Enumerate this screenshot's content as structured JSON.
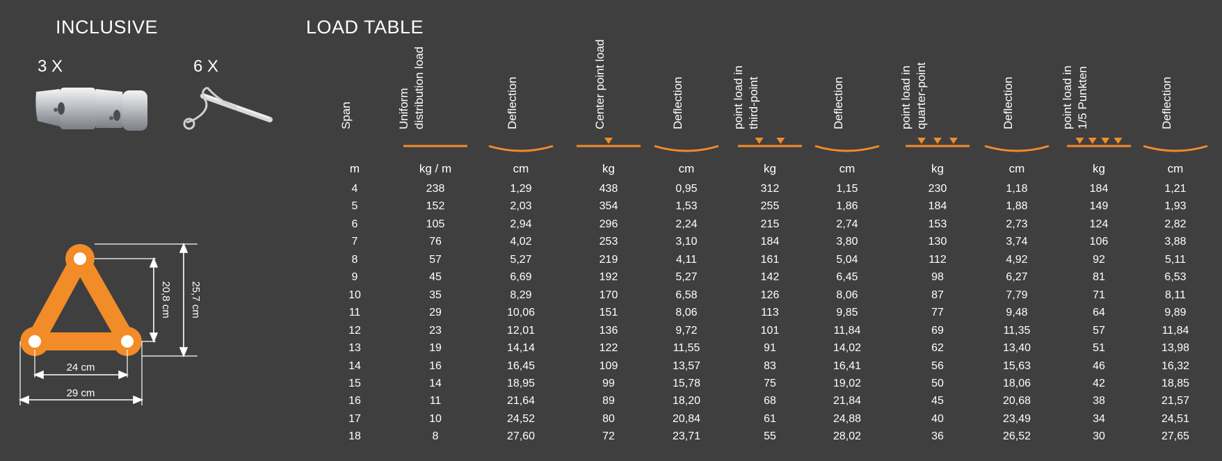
{
  "inclusive": {
    "heading": "INCLUSIVE",
    "item1_qty": "3 X",
    "item2_qty": "6 X"
  },
  "dimensions": {
    "inner_width": "24 cm",
    "outer_width": "29 cm",
    "inner_height": "20,8 cm",
    "outer_height": "25,7 cm"
  },
  "load_table": {
    "heading": "LOAD TABLE",
    "accent_color": "#f28c28",
    "columns": [
      {
        "label": "Span",
        "unit": "m",
        "symbol": "none"
      },
      {
        "label": "Uniform\ndistribution load",
        "unit": "kg / m",
        "symbol": "flat"
      },
      {
        "label": "Deflection",
        "unit": "cm",
        "symbol": "curve"
      },
      {
        "label": "Center point load",
        "unit": "kg",
        "symbol": "point-1"
      },
      {
        "label": "Deflection",
        "unit": "cm",
        "symbol": "curve"
      },
      {
        "label": "point load in\nthird-point",
        "unit": "kg",
        "symbol": "point-2"
      },
      {
        "label": "Deflection",
        "unit": "cm",
        "symbol": "curve"
      },
      {
        "label": "point load in\nquarter-point",
        "unit": "kg",
        "symbol": "point-3"
      },
      {
        "label": "Deflection",
        "unit": "cm",
        "symbol": "curve"
      },
      {
        "label": "point load in\n1/5 Punkten",
        "unit": "kg",
        "symbol": "point-4"
      },
      {
        "label": "Deflection",
        "unit": "cm",
        "symbol": "curve"
      }
    ],
    "rows": [
      [
        "4",
        "238",
        "1,29",
        "438",
        "0,95",
        "312",
        "1,15",
        "230",
        "1,18",
        "184",
        "1,21"
      ],
      [
        "5",
        "152",
        "2,03",
        "354",
        "1,53",
        "255",
        "1,86",
        "184",
        "1,88",
        "149",
        "1,93"
      ],
      [
        "6",
        "105",
        "2,94",
        "296",
        "2,24",
        "215",
        "2,74",
        "153",
        "2,73",
        "124",
        "2,82"
      ],
      [
        "7",
        "76",
        "4,02",
        "253",
        "3,10",
        "184",
        "3,80",
        "130",
        "3,74",
        "106",
        "3,88"
      ],
      [
        "8",
        "57",
        "5,27",
        "219",
        "4,11",
        "161",
        "5,04",
        "112",
        "4,92",
        "92",
        "5,11"
      ],
      [
        "9",
        "45",
        "6,69",
        "192",
        "5,27",
        "142",
        "6,45",
        "98",
        "6,27",
        "81",
        "6,53"
      ],
      [
        "10",
        "35",
        "8,29",
        "170",
        "6,58",
        "126",
        "8,06",
        "87",
        "7,79",
        "71",
        "8,11"
      ],
      [
        "11",
        "29",
        "10,06",
        "151",
        "8,06",
        "113",
        "9,85",
        "77",
        "9,48",
        "64",
        "9,89"
      ],
      [
        "12",
        "23",
        "12,01",
        "136",
        "9,72",
        "101",
        "11,84",
        "69",
        "11,35",
        "57",
        "11,84"
      ],
      [
        "13",
        "19",
        "14,14",
        "122",
        "11,55",
        "91",
        "14,02",
        "62",
        "13,40",
        "51",
        "13,98"
      ],
      [
        "14",
        "16",
        "16,45",
        "109",
        "13,57",
        "83",
        "16,41",
        "56",
        "15,63",
        "46",
        "16,32"
      ],
      [
        "15",
        "14",
        "18,95",
        "99",
        "15,78",
        "75",
        "19,02",
        "50",
        "18,06",
        "42",
        "18,85"
      ],
      [
        "16",
        "11",
        "21,64",
        "89",
        "18,20",
        "68",
        "21,84",
        "45",
        "20,68",
        "38",
        "21,57"
      ],
      [
        "17",
        "10",
        "24,52",
        "80",
        "20,84",
        "61",
        "24,88",
        "40",
        "23,49",
        "34",
        "24,51"
      ],
      [
        "18",
        "8",
        "27,60",
        "72",
        "23,71",
        "55",
        "28,02",
        "36",
        "26,52",
        "30",
        "27,65"
      ]
    ]
  }
}
